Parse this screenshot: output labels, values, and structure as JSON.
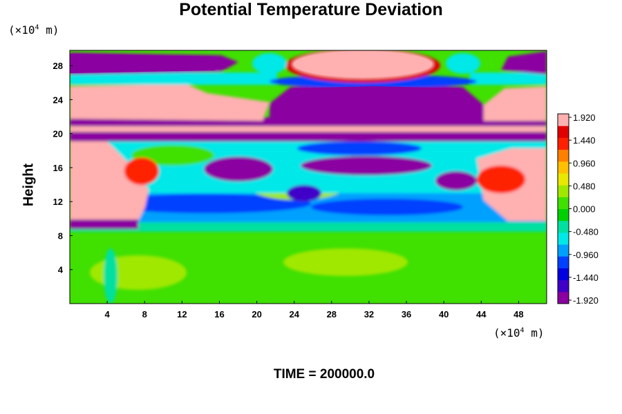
{
  "title": "Potential Temperature Deviation",
  "footer": "TIME = 200000.0",
  "colors": {
    "background": "#ffffff",
    "palette": [
      "#8a00a0",
      "#4000c8",
      "#0000e0",
      "#0040ff",
      "#00a0ff",
      "#00e8e8",
      "#00e0a0",
      "#00d000",
      "#40e000",
      "#a0e800",
      "#e8e800",
      "#ffc000",
      "#ff8000",
      "#ff2000",
      "#e00000",
      "#ffb0b0"
    ]
  },
  "chart_data": {
    "type": "heatmap",
    "title": "Potential Temperature Deviation",
    "ylabel": "Height",
    "xlabel": "",
    "x_unit": {
      "prefix": "(×10",
      "exp": "4",
      "suffix": " m)"
    },
    "y_unit": {
      "prefix": "(×10",
      "exp": "4",
      "suffix": " m)"
    },
    "xlim": [
      0,
      51
    ],
    "ylim": [
      0,
      29.8
    ],
    "x_ticks": [
      4,
      8,
      12,
      16,
      20,
      24,
      28,
      32,
      36,
      40,
      44,
      48
    ],
    "y_ticks": [
      4,
      8,
      12,
      16,
      20,
      24,
      28
    ],
    "colorbar": {
      "min": -1.92,
      "max": 1.92,
      "tick_labels": [
        "1.920",
        "1.440",
        "0.960",
        "0.480",
        "0.000",
        "-0.480",
        "-0.960",
        "-1.440",
        "-1.920"
      ]
    },
    "annotation": "TIME = 200000.0"
  }
}
